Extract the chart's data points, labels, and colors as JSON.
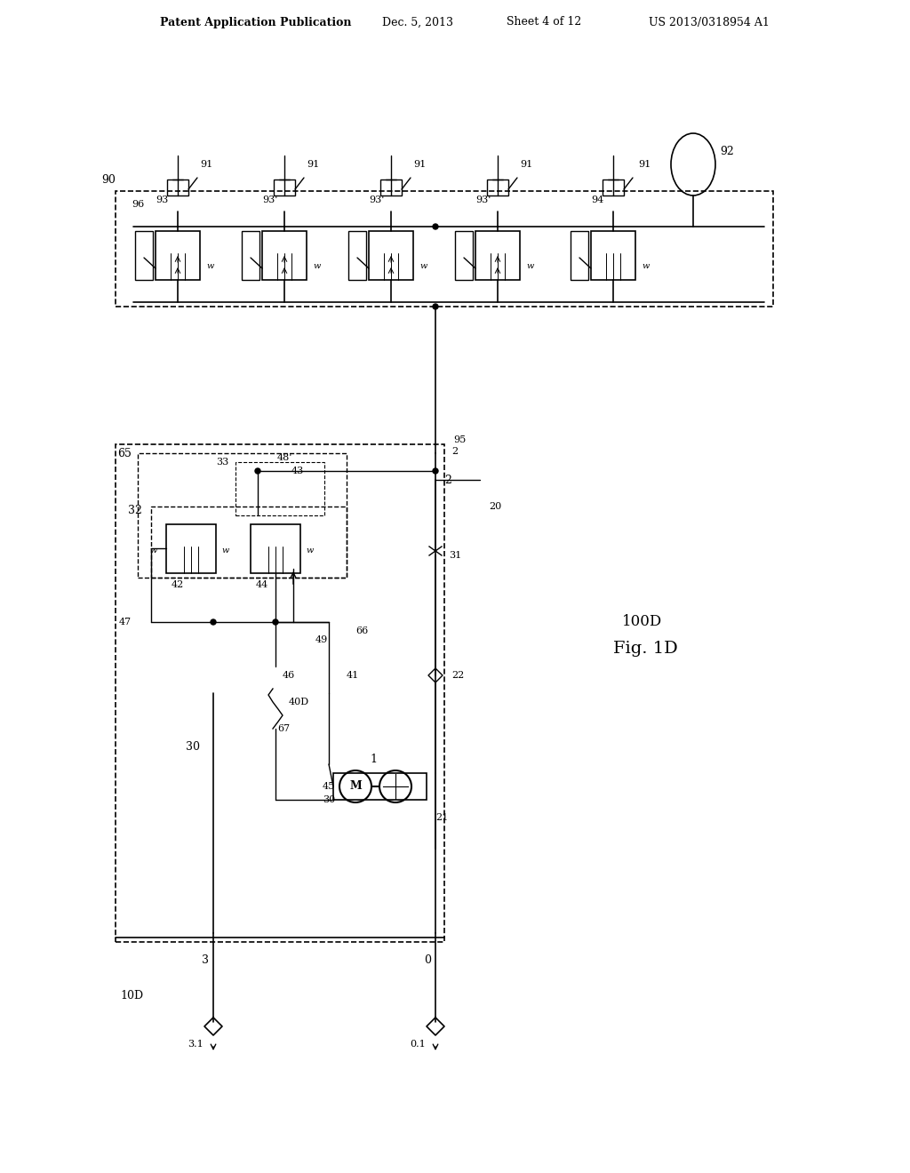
{
  "bg_color": "#ffffff",
  "line_color": "#000000",
  "header_left": "Patent Application Publication",
  "header_center": "Dec. 5, 2013   Sheet 4 of 12",
  "header_right": "US 2013/0318954 A1",
  "fig_label": "Fig. 1D",
  "fig_number": "100D",
  "title_fontsize": 9,
  "label_fontsize": 8
}
